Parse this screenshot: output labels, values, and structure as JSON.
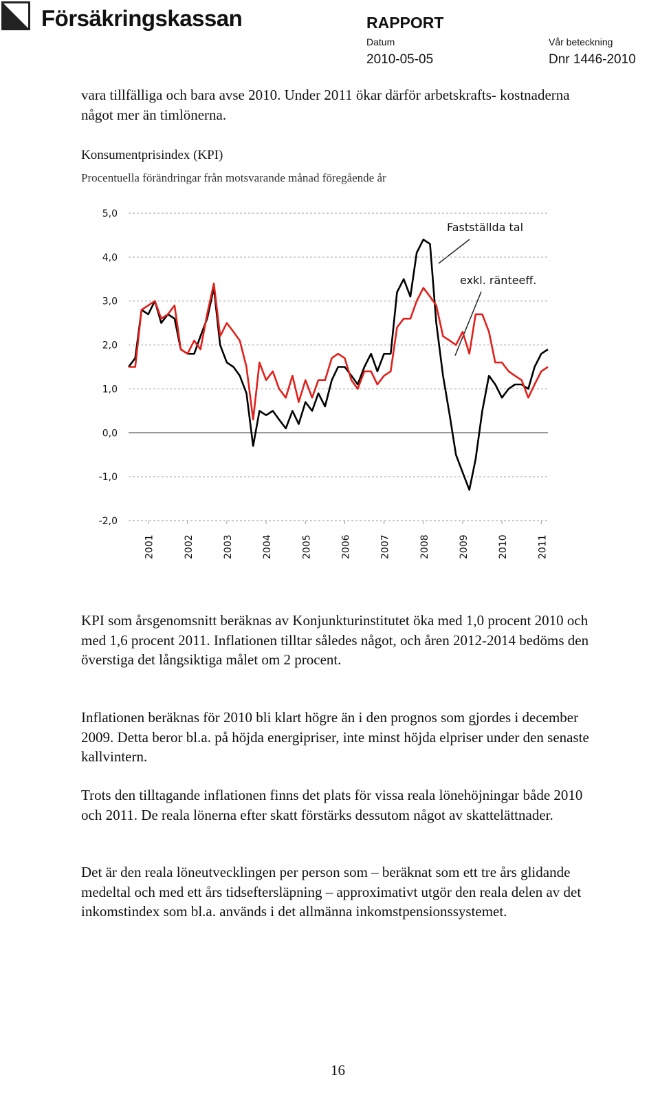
{
  "header": {
    "company": "Försäkringskassan",
    "doc_type": "RAPPORT",
    "date_label": "Datum",
    "date": "2010-05-05",
    "ref_label": "Vår beteckning",
    "ref": "Dnr 1446-2010"
  },
  "intro": "vara tillfälliga och bara avse 2010. Under 2011 ökar därför arbetskrafts- kostnaderna något mer än timlönerna.",
  "chart_data": {
    "type": "line",
    "title": "Konsumentprisindex (KPI)",
    "subtitle": "Procentuella förändringar från motsvarande månad föregående år",
    "x": [
      2000.5,
      2000.67,
      2000.83,
      2001,
      2001.17,
      2001.33,
      2001.5,
      2001.67,
      2001.83,
      2002,
      2002.17,
      2002.33,
      2002.5,
      2002.67,
      2002.83,
      2003,
      2003.17,
      2003.33,
      2003.5,
      2003.67,
      2003.83,
      2004,
      2004.17,
      2004.33,
      2004.5,
      2004.67,
      2004.83,
      2005,
      2005.17,
      2005.33,
      2005.5,
      2005.67,
      2005.83,
      2006,
      2006.17,
      2006.33,
      2006.5,
      2006.67,
      2006.83,
      2007,
      2007.17,
      2007.33,
      2007.5,
      2007.67,
      2007.83,
      2008,
      2008.17,
      2008.33,
      2008.5,
      2008.67,
      2008.83,
      2009,
      2009.17,
      2009.33,
      2009.5,
      2009.67,
      2009.83,
      2010,
      2010.17,
      2010.33,
      2010.5,
      2010.67,
      2010.83,
      2011,
      2011.17
    ],
    "series": [
      {
        "name": "Fastställda tal",
        "color": "#000000",
        "values": [
          1.5,
          1.7,
          2.8,
          2.7,
          3.0,
          2.5,
          2.7,
          2.6,
          1.9,
          1.8,
          1.8,
          2.2,
          2.6,
          3.3,
          2.0,
          1.6,
          1.5,
          1.3,
          0.9,
          -0.3,
          0.5,
          0.4,
          0.5,
          0.3,
          0.1,
          0.5,
          0.2,
          0.7,
          0.5,
          0.9,
          0.6,
          1.2,
          1.5,
          1.5,
          1.3,
          1.1,
          1.5,
          1.8,
          1.4,
          1.8,
          1.8,
          3.2,
          3.5,
          3.1,
          4.1,
          4.4,
          4.3,
          2.5,
          1.3,
          0.4,
          -0.5,
          -0.9,
          -1.3,
          -0.6,
          0.5,
          1.3,
          1.1,
          0.8,
          1.0,
          1.1,
          1.1,
          1.0,
          1.5,
          1.8,
          1.9
        ]
      },
      {
        "name": "exkl. ränteeff.",
        "color": "#e0201b",
        "values": [
          1.5,
          1.5,
          2.8,
          2.9,
          3.0,
          2.6,
          2.7,
          2.9,
          1.9,
          1.8,
          2.1,
          1.9,
          2.7,
          3.4,
          2.2,
          2.5,
          2.3,
          2.1,
          1.5,
          0.3,
          1.6,
          1.2,
          1.4,
          1.0,
          0.8,
          1.3,
          0.7,
          1.2,
          0.8,
          1.2,
          1.2,
          1.7,
          1.8,
          1.7,
          1.2,
          1.0,
          1.4,
          1.4,
          1.1,
          1.3,
          1.4,
          2.4,
          2.6,
          2.6,
          3.0,
          3.3,
          3.1,
          2.9,
          2.2,
          2.1,
          2.0,
          2.3,
          1.8,
          2.7,
          2.7,
          2.3,
          1.6,
          1.6,
          1.4,
          1.3,
          1.2,
          0.8,
          1.1,
          1.4,
          1.5
        ]
      }
    ],
    "xlim": [
      2000.5,
      2011.17
    ],
    "xticks": [
      2001,
      2002,
      2003,
      2004,
      2005,
      2006,
      2007,
      2008,
      2009,
      2010,
      2011
    ],
    "ylim": [
      -2,
      5
    ],
    "yticks": [
      {
        "value": -2,
        "label": "-2,0"
      },
      {
        "value": -1,
        "label": "-1,0"
      },
      {
        "value": 0,
        "label": "0,0"
      },
      {
        "value": 1,
        "label": "1,0"
      },
      {
        "value": 2,
        "label": "2,0"
      },
      {
        "value": 3,
        "label": "3,0"
      },
      {
        "value": 4,
        "label": "4,0"
      },
      {
        "value": 5,
        "label": "5,0"
      }
    ],
    "grid": true
  },
  "paragraphs": [
    "KPI som årsgenomsnitt beräknas av Konjunkturinstitutet öka med 1,0 procent 2010 och med 1,6 procent 2011. Inflationen tilltar således något, och åren 2012-2014 bedöms den överstiga det långsiktiga målet om 2 procent.",
    "Inflationen beräknas för 2010 bli klart högre än i den prognos som gjordes i december 2009. Detta beror bl.a. på höjda energipriser, inte minst höjda elpriser under den senaste kallvintern.",
    "Trots den tilltagande inflationen finns det plats för vissa reala lönehöjningar både 2010 och 2011. De reala lönerna efter skatt förstärks dessutom något av skattelättnader.",
    "Det är den reala löneutvecklingen per person som – beräknat som ett tre års glidande medeltal och med ett års tidseftersläpning – approximativt utgör den reala delen av det inkomstindex som bl.a. används i det allmänna inkomstpensionssystemet."
  ],
  "page_number": "16"
}
